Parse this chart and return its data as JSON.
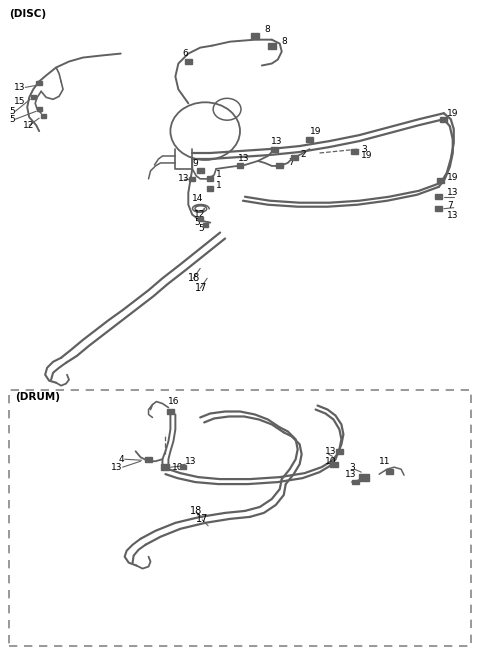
{
  "bg_color": "#ffffff",
  "line_color": "#606060",
  "disc_label": "(DISC)",
  "drum_label": "(DRUM)",
  "figsize": [
    4.8,
    6.52
  ],
  "dpi": 100
}
